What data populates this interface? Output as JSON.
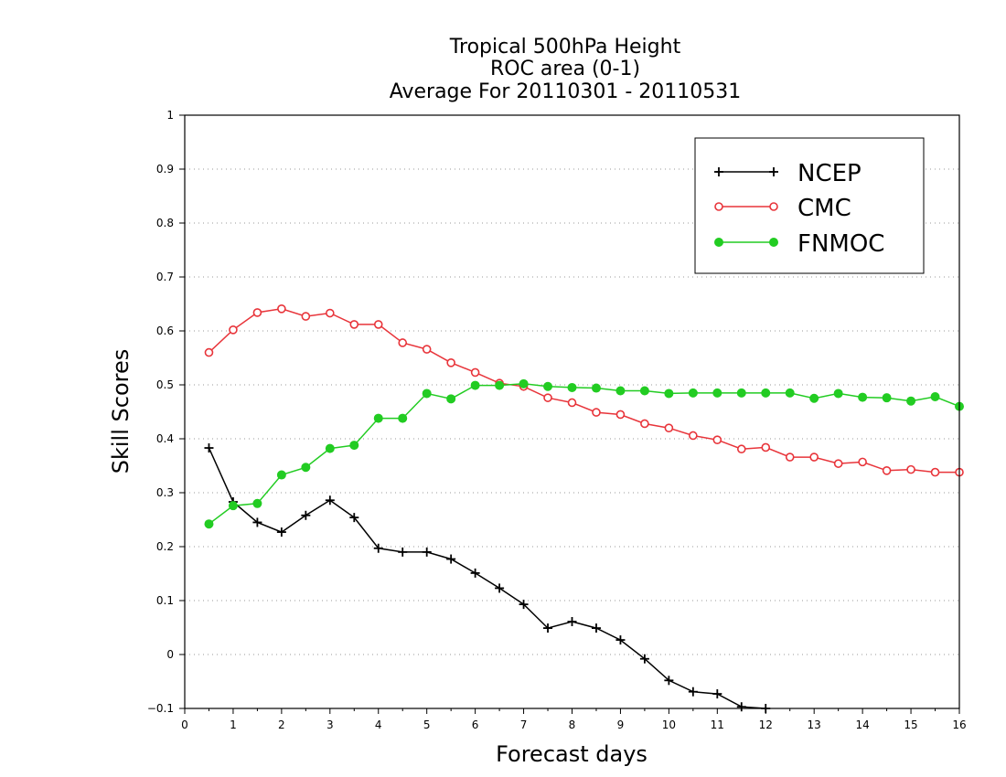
{
  "chart_data": {
    "type": "line",
    "title": [
      "Tropical 500hPa Height",
      "ROC area (0-1)",
      "Average For 20110301 - 20110531"
    ],
    "xlabel": "Forecast days",
    "ylabel": "Skill Scores",
    "xlim": [
      0,
      16
    ],
    "ylim": [
      -0.1,
      1
    ],
    "x_ticks": [
      "0",
      "1",
      "2",
      "3",
      "4",
      "5",
      "6",
      "7",
      "8",
      "9",
      "10",
      "11",
      "12",
      "13",
      "14",
      "15",
      "16"
    ],
    "y_ticks": [
      "−0.1",
      "0",
      "0.1",
      "0.2",
      "0.3",
      "0.4",
      "0.5",
      "0.6",
      "0.7",
      "0.8",
      "0.9",
      "1"
    ],
    "grid": "horizontal-dotted",
    "legend_position": "top-right",
    "series": [
      {
        "name": "NCEP",
        "color": "#000000",
        "marker": "plus",
        "x": [
          0.5,
          1,
          1.5,
          2,
          2.5,
          3,
          3.5,
          4,
          4.5,
          5,
          5.5,
          6,
          6.5,
          7,
          7.5,
          8,
          8.5,
          9,
          9.5,
          10,
          10.5,
          11,
          11.5,
          12
        ],
        "y": [
          0.383,
          0.283,
          0.245,
          0.227,
          0.258,
          0.286,
          0.254,
          0.197,
          0.19,
          0.19,
          0.177,
          0.151,
          0.123,
          0.093,
          0.049,
          0.061,
          0.049,
          0.027,
          -0.008,
          -0.048,
          -0.069,
          -0.073,
          -0.097,
          -0.1
        ]
      },
      {
        "name": "CMC",
        "color": "#e8343a",
        "marker": "open-circle",
        "x": [
          0.5,
          1,
          1.5,
          2,
          2.5,
          3,
          3.5,
          4,
          4.5,
          5,
          5.5,
          6,
          6.5,
          7,
          7.5,
          8,
          8.5,
          9,
          9.5,
          10,
          10.5,
          11,
          11.5,
          12,
          12.5,
          13,
          13.5,
          14,
          14.5,
          15,
          15.5,
          16
        ],
        "y": [
          0.56,
          0.602,
          0.634,
          0.641,
          0.627,
          0.633,
          0.612,
          0.612,
          0.578,
          0.566,
          0.541,
          0.523,
          0.503,
          0.497,
          0.476,
          0.467,
          0.449,
          0.445,
          0.428,
          0.42,
          0.406,
          0.398,
          0.381,
          0.384,
          0.366,
          0.366,
          0.354,
          0.357,
          0.341,
          0.343,
          0.338,
          0.338
        ]
      },
      {
        "name": "FNMOC",
        "color": "#22cc22",
        "marker": "filled-circle",
        "x": [
          0.5,
          1,
          1.5,
          2,
          2.5,
          3,
          3.5,
          4,
          4.5,
          5,
          5.5,
          6,
          6.5,
          7,
          7.5,
          8,
          8.5,
          9,
          9.5,
          10,
          10.5,
          11,
          11.5,
          12,
          12.5,
          13,
          13.5,
          14,
          14.5,
          15,
          15.5,
          16
        ],
        "y": [
          0.242,
          0.276,
          0.28,
          0.333,
          0.347,
          0.382,
          0.388,
          0.438,
          0.438,
          0.484,
          0.474,
          0.499,
          0.499,
          0.502,
          0.497,
          0.495,
          0.494,
          0.489,
          0.489,
          0.484,
          0.485,
          0.485,
          0.485,
          0.485,
          0.485,
          0.475,
          0.484,
          0.477,
          0.476,
          0.47,
          0.478,
          0.46
        ]
      }
    ]
  }
}
